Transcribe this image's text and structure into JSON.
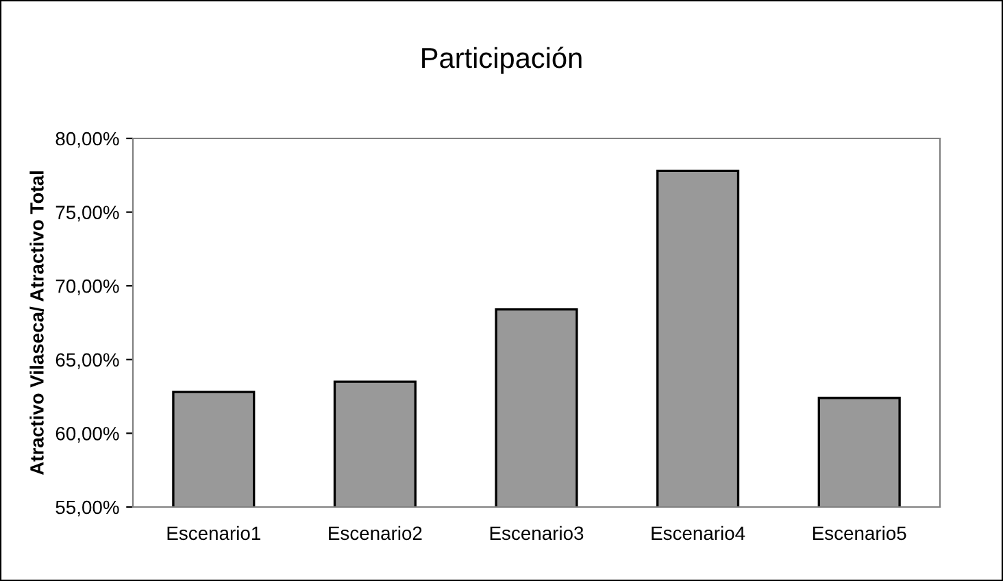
{
  "chart_data": {
    "type": "bar",
    "title": "Participación",
    "ylabel": "Atractivo Vilaseca/ Atractivo Total",
    "categories": [
      "Escenario1",
      "Escenario2",
      "Escenario3",
      "Escenario4",
      "Escenario5"
    ],
    "values": [
      62.8,
      63.5,
      68.4,
      77.8,
      62.4
    ],
    "color": "#999999",
    "ylim": [
      55,
      80
    ],
    "yticks": [
      {
        "value": 55,
        "label": "55,00%"
      },
      {
        "value": 60,
        "label": "60,00%"
      },
      {
        "value": 65,
        "label": "65,00%"
      },
      {
        "value": 70,
        "label": "70,00%"
      },
      {
        "value": 75,
        "label": "75,00%"
      },
      {
        "value": 80,
        "label": "80,00%"
      }
    ],
    "grid": false,
    "legend": false
  }
}
